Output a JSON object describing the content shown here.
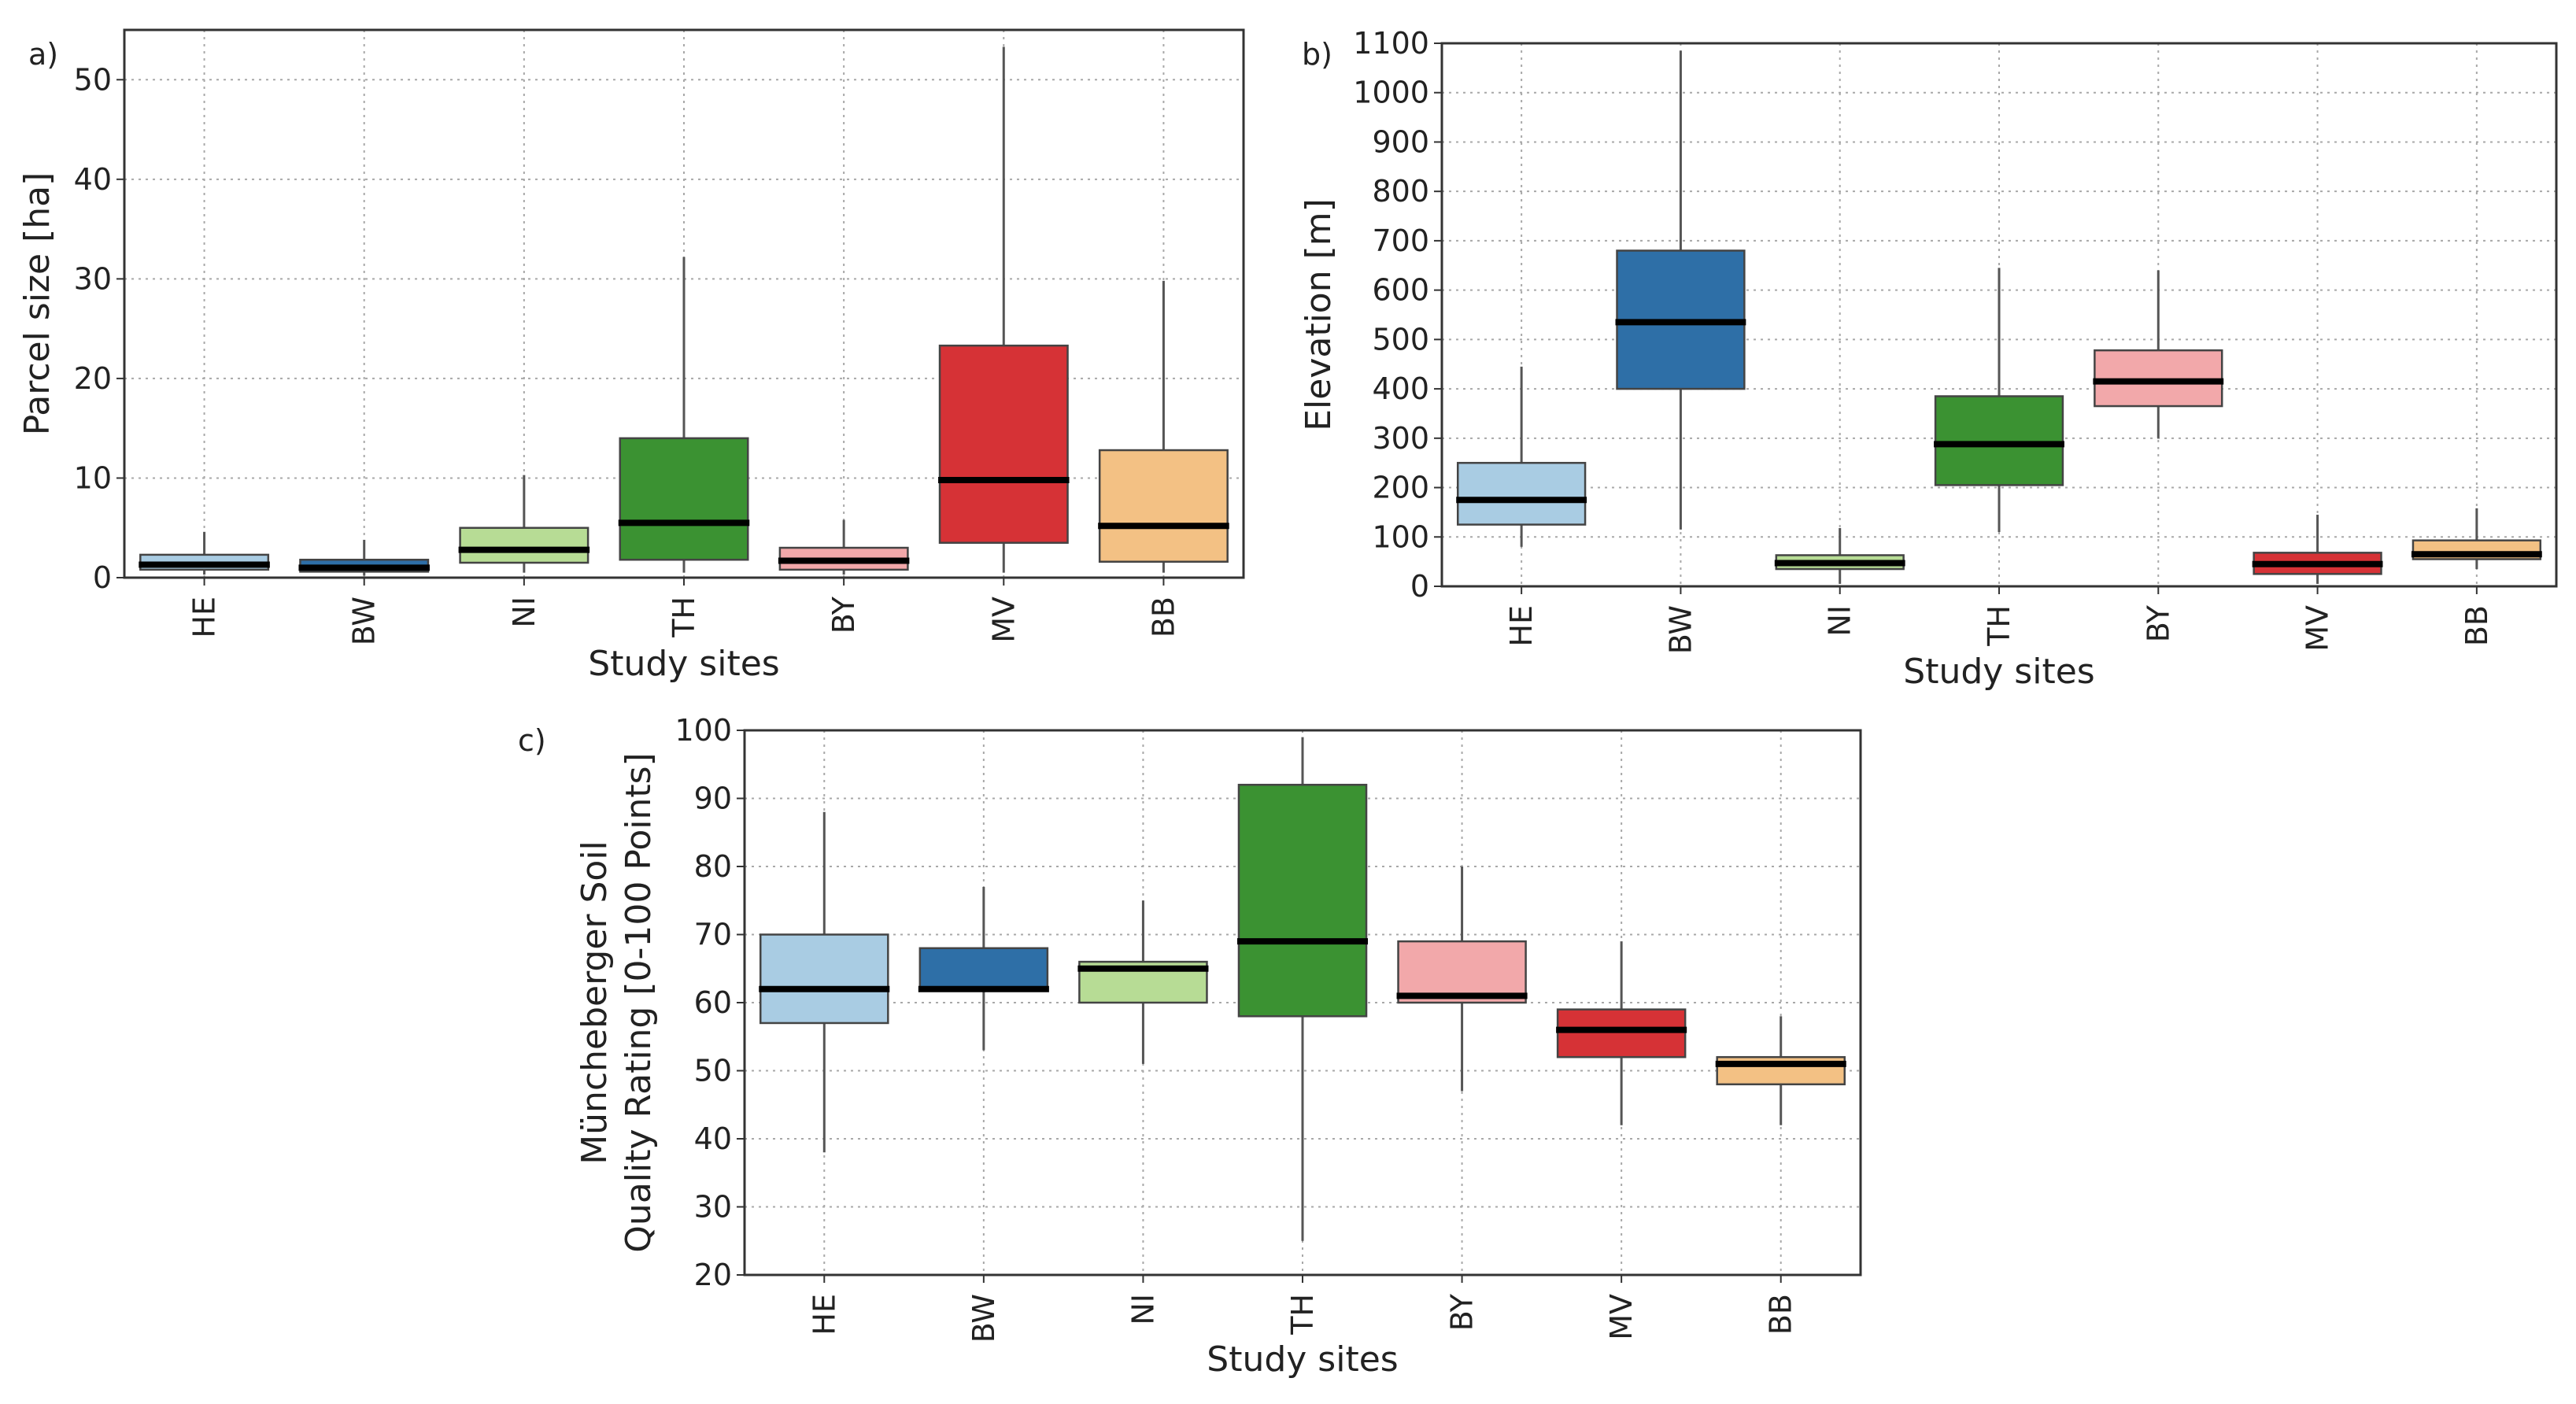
{
  "chart_data": [
    {
      "type": "box",
      "panel_label": "a)",
      "title": "",
      "xlabel": "Study sites",
      "ylabel": "Parcel size [ha]",
      "ylim": [
        0,
        55
      ],
      "yticks": [
        0,
        10,
        20,
        30,
        40,
        50
      ],
      "categories": [
        "HE",
        "BW",
        "NI",
        "TH",
        "BY",
        "MV",
        "BB"
      ],
      "colors": [
        "#a9cce3",
        "#2e6fa7",
        "#b7dc95",
        "#3b9232",
        "#f2a8aa",
        "#d63236",
        "#f3c184"
      ],
      "boxes": [
        {
          "whislo": 0.3,
          "q1": 0.8,
          "med": 1.3,
          "q3": 2.3,
          "whishi": 4.6
        },
        {
          "whislo": 0.2,
          "q1": 0.6,
          "med": 1.0,
          "q3": 1.8,
          "whishi": 3.8
        },
        {
          "whislo": 0.5,
          "q1": 1.5,
          "med": 2.8,
          "q3": 5.0,
          "whishi": 10.3
        },
        {
          "whislo": 0.5,
          "q1": 1.8,
          "med": 5.5,
          "q3": 14.0,
          "whishi": 32.2
        },
        {
          "whislo": 0.3,
          "q1": 0.8,
          "med": 1.7,
          "q3": 3.0,
          "whishi": 5.8
        },
        {
          "whislo": 0.5,
          "q1": 3.5,
          "med": 9.8,
          "q3": 23.3,
          "whishi": 53.3
        },
        {
          "whislo": 0.5,
          "q1": 1.6,
          "med": 5.2,
          "q3": 12.8,
          "whishi": 29.8
        }
      ]
    },
    {
      "type": "box",
      "panel_label": "b)",
      "title": "",
      "xlabel": "Study sites",
      "ylabel": "Elevation [m]",
      "ylim": [
        0,
        1100
      ],
      "yticks": [
        0,
        100,
        200,
        300,
        400,
        500,
        600,
        700,
        800,
        900,
        1000,
        1100
      ],
      "categories": [
        "HE",
        "BW",
        "NI",
        "TH",
        "BY",
        "MV",
        "BB"
      ],
      "colors": [
        "#a9cce3",
        "#2e6fa7",
        "#b7dc95",
        "#3b9232",
        "#f2a8aa",
        "#d63236",
        "#f3c184"
      ],
      "boxes": [
        {
          "whislo": 80,
          "q1": 125,
          "med": 175,
          "q3": 250,
          "whishi": 445
        },
        {
          "whislo": 115,
          "q1": 400,
          "med": 535,
          "q3": 680,
          "whishi": 1085
        },
        {
          "whislo": 5,
          "q1": 35,
          "med": 47,
          "q3": 63,
          "whishi": 118
        },
        {
          "whislo": 110,
          "q1": 205,
          "med": 288,
          "q3": 385,
          "whishi": 645
        },
        {
          "whislo": 300,
          "q1": 365,
          "med": 415,
          "q3": 478,
          "whishi": 640
        },
        {
          "whislo": 5,
          "q1": 25,
          "med": 45,
          "q3": 68,
          "whishi": 145
        },
        {
          "whislo": 35,
          "q1": 55,
          "med": 65,
          "q3": 93,
          "whishi": 158
        }
      ]
    },
    {
      "type": "box",
      "panel_label": "c)",
      "title": "",
      "xlabel": "Study sites",
      "ylabel": "Müncheberger Soil Quality Rating [0-100 Points]",
      "ylabel_lines": [
        "Müncheberger Soil",
        "Quality Rating [0-100 Points]"
      ],
      "ylim": [
        20,
        100
      ],
      "yticks": [
        20,
        30,
        40,
        50,
        60,
        70,
        80,
        90,
        100
      ],
      "categories": [
        "HE",
        "BW",
        "NI",
        "TH",
        "BY",
        "MV",
        "BB"
      ],
      "colors": [
        "#a9cce3",
        "#2e6fa7",
        "#b7dc95",
        "#3b9232",
        "#f2a8aa",
        "#d63236",
        "#f3c184"
      ],
      "boxes": [
        {
          "whislo": 38,
          "q1": 57,
          "med": 62,
          "q3": 70,
          "whishi": 88
        },
        {
          "whislo": 53,
          "q1": 62,
          "med": 62,
          "q3": 68,
          "whishi": 77
        },
        {
          "whislo": 51,
          "q1": 60,
          "med": 65,
          "q3": 66,
          "whishi": 75
        },
        {
          "whislo": 25,
          "q1": 58,
          "med": 69,
          "q3": 92,
          "whishi": 99
        },
        {
          "whislo": 47,
          "q1": 60,
          "med": 61,
          "q3": 69,
          "whishi": 80
        },
        {
          "whislo": 42,
          "q1": 52,
          "med": 56,
          "q3": 59,
          "whishi": 69
        },
        {
          "whislo": 42,
          "q1": 48,
          "med": 51,
          "q3": 52,
          "whishi": 58
        }
      ]
    }
  ]
}
